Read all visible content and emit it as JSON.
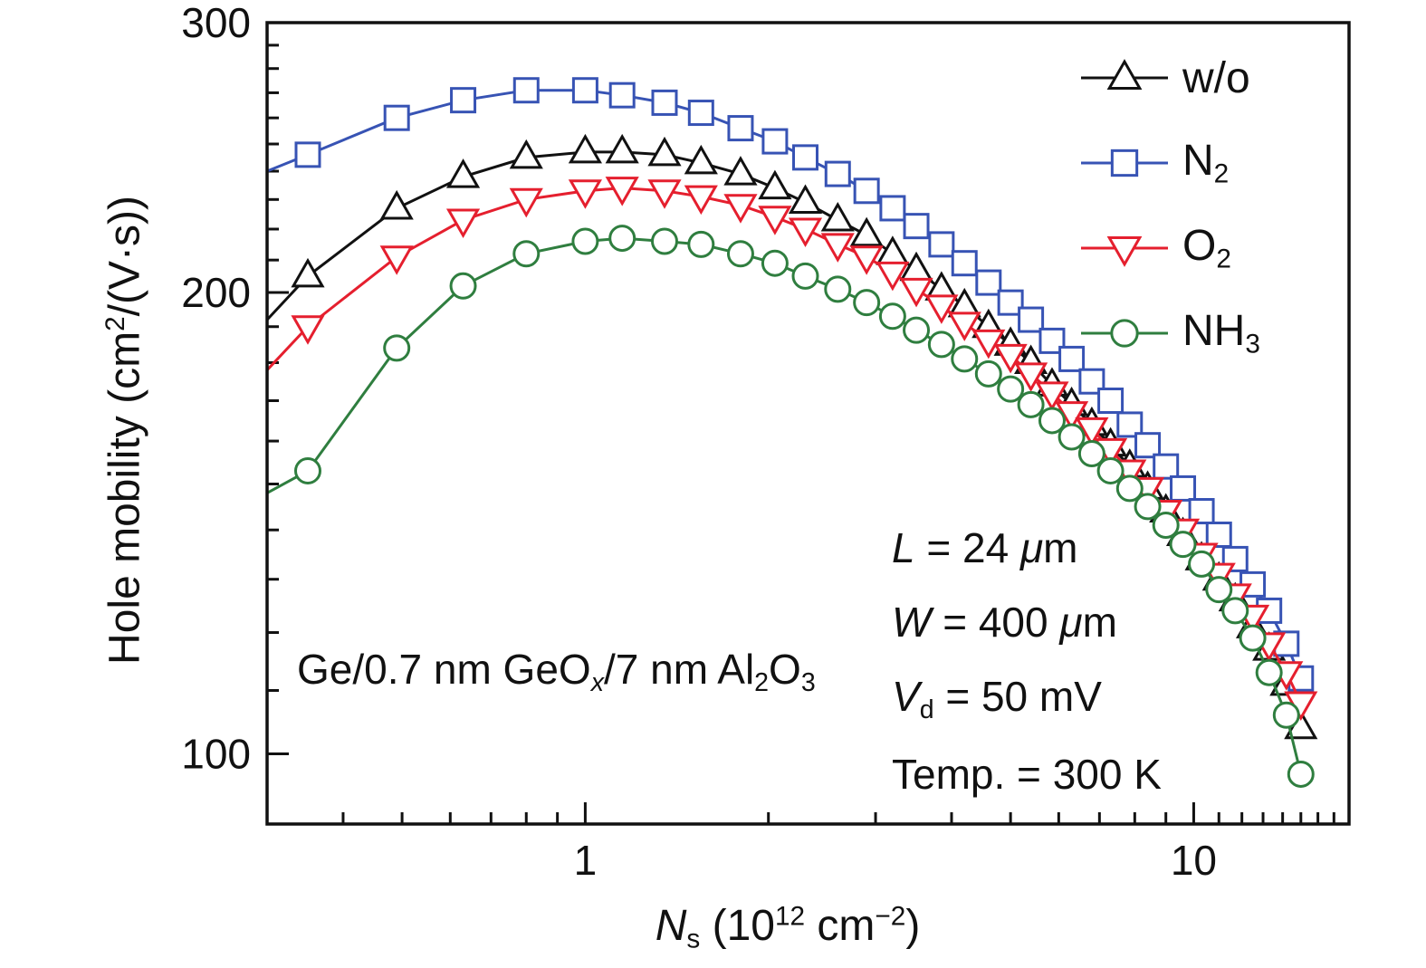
{
  "chart_data": {
    "type": "line",
    "title": "",
    "xlabel_plain": "Ns (10^12 cm^-2)",
    "ylabel_plain": "Hole mobility (cm^2/(V s))",
    "xlabel_segments": [
      {
        "t": "N",
        "i": true
      },
      {
        "t": "s",
        "sub": true
      },
      {
        "t": " (10"
      },
      {
        "t": "12",
        "sup": true
      },
      {
        "t": " cm"
      },
      {
        "t": "−2",
        "sup": true
      },
      {
        "t": ")"
      }
    ],
    "ylabel_segments": [
      {
        "t": "Hole mobility (cm"
      },
      {
        "t": "2",
        "sup": true
      },
      {
        "t": "/(V·s))"
      }
    ],
    "x_axis": {
      "scale": "log",
      "min": 0.3,
      "max": 18,
      "major": [
        {
          "v": 1,
          "label": "1"
        },
        {
          "v": 10,
          "label": "10"
        }
      ],
      "minor": [
        0.4,
        0.5,
        0.6,
        0.7,
        0.8,
        0.9,
        2,
        3,
        4,
        5,
        6,
        7,
        8,
        9,
        11,
        12,
        13,
        14,
        15,
        16,
        17
      ]
    },
    "y_axis": {
      "scale": "log",
      "min": 90,
      "max": 300,
      "major": [
        {
          "v": 100,
          "label": "100"
        },
        {
          "v": 200,
          "label": "200"
        },
        {
          "v": 300,
          "label": "300"
        }
      ],
      "minor": [
        110,
        120,
        130,
        140,
        150,
        160,
        170,
        180,
        190,
        210,
        220,
        230,
        240,
        250,
        260,
        270,
        280,
        290
      ]
    },
    "x": [
      0.3,
      0.35,
      0.49,
      0.63,
      0.8,
      1.0,
      1.15,
      1.35,
      1.55,
      1.8,
      2.05,
      2.3,
      2.6,
      2.9,
      3.2,
      3.5,
      3.85,
      4.2,
      4.6,
      5.0,
      5.4,
      5.85,
      6.3,
      6.8,
      7.3,
      7.85,
      8.4,
      9.0,
      9.6,
      10.3,
      11.0,
      11.7,
      12.5,
      13.3,
      14.2,
      15.0
    ],
    "series": [
      {
        "name": "w/o",
        "marker": "triangle-up",
        "color": "#111111",
        "label_segments": [
          {
            "t": "w/o"
          }
        ],
        "values": [
          192,
          205,
          227,
          238,
          245,
          247,
          247,
          246,
          243,
          239,
          234,
          229,
          223,
          218,
          212,
          207,
          201,
          196,
          190,
          185,
          180,
          174,
          169,
          164,
          159,
          154,
          149,
          144,
          139,
          134,
          130,
          126,
          121,
          117,
          111,
          104
        ]
      },
      {
        "name": "N2",
        "marker": "square",
        "color": "#3753b4",
        "label_segments": [
          {
            "t": "N"
          },
          {
            "t": "2",
            "sub": true
          }
        ],
        "values": [
          240,
          246,
          260,
          267,
          271,
          271,
          269,
          266,
          262,
          256,
          251,
          245,
          239,
          233,
          227,
          221,
          215,
          209,
          203,
          197,
          192,
          186,
          181,
          175,
          170,
          164,
          159,
          154,
          149,
          144,
          139,
          134,
          129,
          124,
          118,
          112
        ]
      },
      {
        "name": "O2",
        "marker": "triangle-down",
        "color": "#e51f2e",
        "label_segments": [
          {
            "t": "O"
          },
          {
            "t": "2",
            "sub": true
          }
        ],
        "values": [
          178,
          190,
          211,
          223,
          230,
          233,
          234,
          233,
          231,
          228,
          224,
          220,
          215,
          211,
          206,
          201,
          196,
          191,
          186,
          182,
          177,
          172,
          167,
          163,
          158,
          153,
          149,
          144,
          140,
          135,
          131,
          127,
          123,
          118,
          113,
          108
        ]
      },
      {
        "name": "NH3",
        "marker": "circle",
        "color": "#2f7e3f",
        "label_segments": [
          {
            "t": "NH"
          },
          {
            "t": "3",
            "sub": true
          }
        ],
        "values": [
          148,
          153,
          184,
          202,
          212,
          216,
          217,
          216,
          215,
          212,
          209,
          205,
          201,
          197,
          193,
          189,
          185,
          181,
          177,
          173,
          169,
          165,
          161,
          157,
          153,
          149,
          145,
          141,
          137,
          133,
          128,
          124,
          119,
          113,
          106,
          97
        ]
      }
    ],
    "annotations": {
      "stack": [
        {
          "t": "Ge/0.7 nm GeO"
        },
        {
          "t": "x",
          "sub": true,
          "i": true
        },
        {
          "t": "/7 nm Al"
        },
        {
          "t": "2",
          "sub": true
        },
        {
          "t": "O"
        },
        {
          "t": "3",
          "sub": true
        }
      ],
      "L": [
        {
          "t": "L",
          "i": true
        },
        {
          "t": " = 24 "
        },
        {
          "t": "μ",
          "i": true
        },
        {
          "t": "m"
        }
      ],
      "W": [
        {
          "t": "W",
          "i": true
        },
        {
          "t": " = 400 "
        },
        {
          "t": "μ",
          "i": true
        },
        {
          "t": "m"
        }
      ],
      "Vd": [
        {
          "t": "V",
          "i": true
        },
        {
          "t": "d",
          "sub": true
        },
        {
          "t": " = 50 mV"
        }
      ],
      "temp": [
        {
          "t": "Temp. = 300 K"
        }
      ]
    },
    "legend_position": "top-right",
    "grid": false
  }
}
